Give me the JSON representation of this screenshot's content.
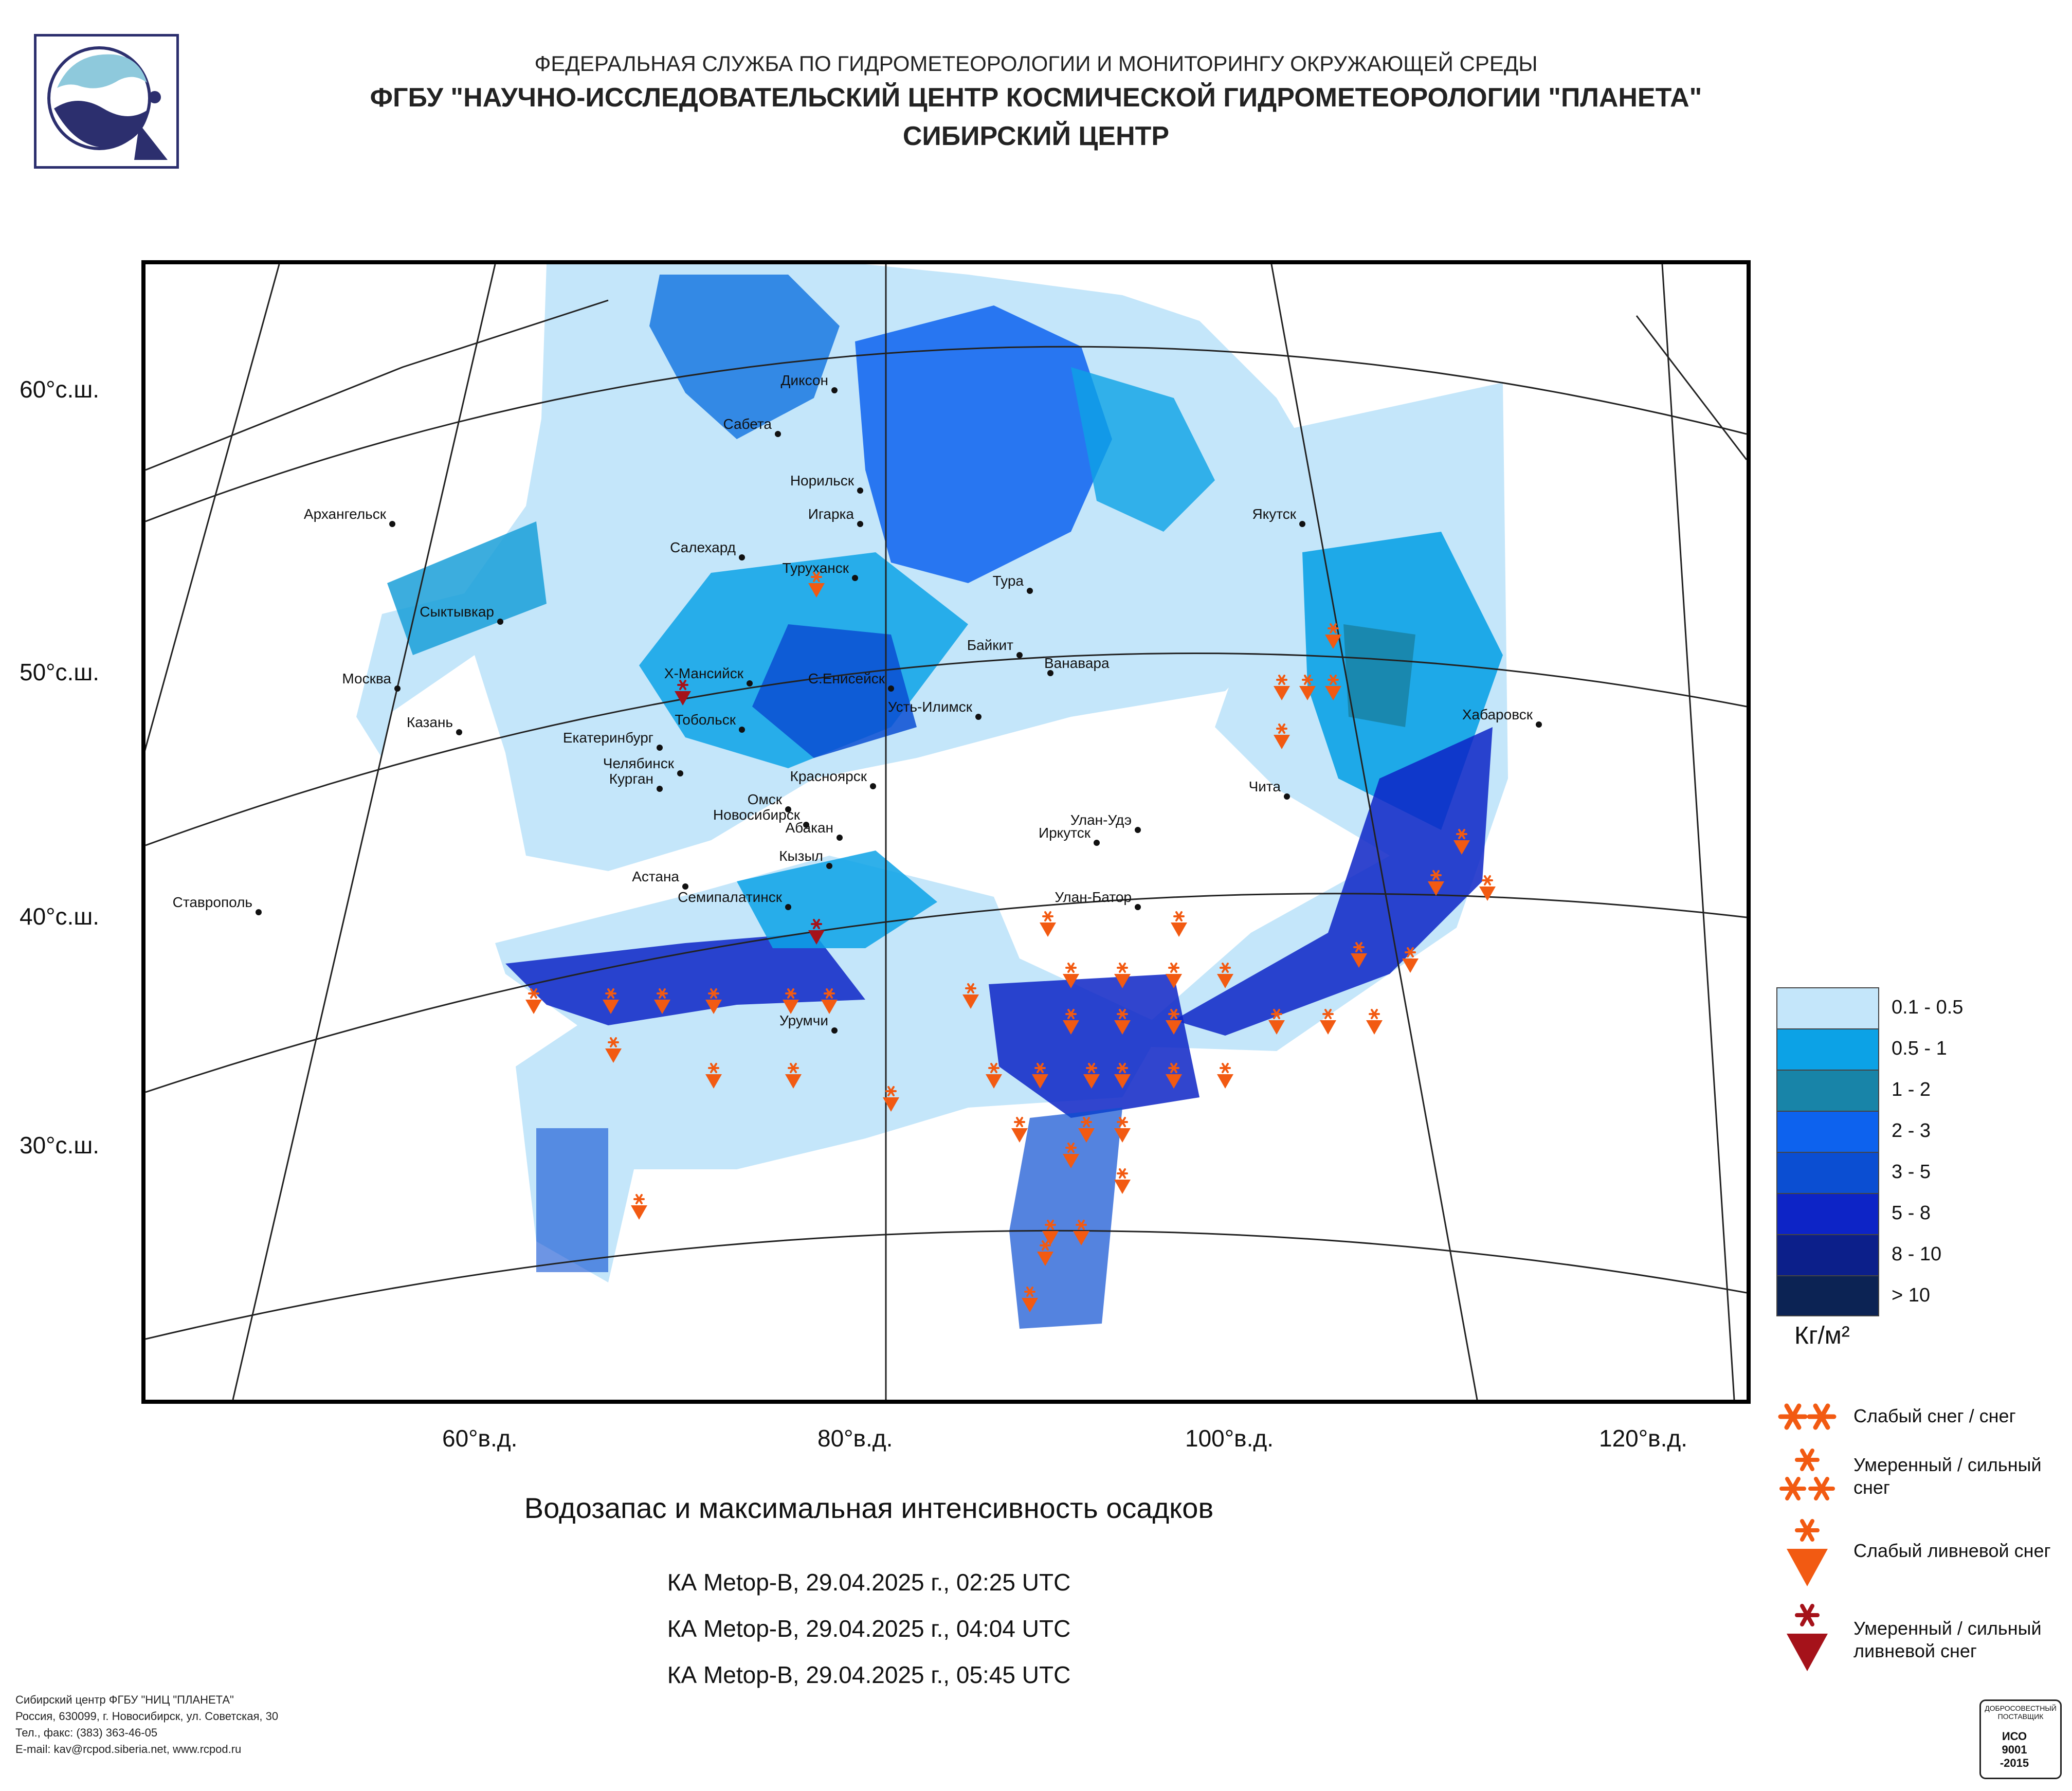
{
  "header": {
    "line1": "ФЕДЕРАЛЬНАЯ СЛУЖБА ПО ГИДРОМЕТЕОРОЛОГИИ И МОНИТОРИНГУ ОКРУЖАЮЩЕЙ СРЕДЫ",
    "line2": "ФГБУ \"НАУЧНО-ИССЛЕДОВАТЕЛЬСКИЙ ЦЕНТР КОСМИЧЕСКОЙ ГИДРОМЕТЕОРОЛОГИИ \"ПЛАНЕТА\"",
    "line3": "СИБИРСКИЙ ЦЕНТР"
  },
  "axes": {
    "lat_labels": [
      "60°с.ш.",
      "50°с.ш.",
      "40°с.ш.",
      "30°с.ш."
    ],
    "lon_labels": [
      "60°в.д.",
      "80°в.д.",
      "100°в.д.",
      "120°в.д."
    ]
  },
  "cities": [
    {
      "name": "Диксон"
    },
    {
      "name": "Сабета"
    },
    {
      "name": "Норильск"
    },
    {
      "name": "Игарка"
    },
    {
      "name": "Архангельск"
    },
    {
      "name": "Салехард"
    },
    {
      "name": "Туруханск"
    },
    {
      "name": "Тура"
    },
    {
      "name": "Якутск"
    },
    {
      "name": "Сыктывкар"
    },
    {
      "name": "Байкит"
    },
    {
      "name": "Ванавара"
    },
    {
      "name": "Москва"
    },
    {
      "name": "Х-Мансийск"
    },
    {
      "name": "С.Енисейск"
    },
    {
      "name": "Усть-Илимск"
    },
    {
      "name": "Хабаровск"
    },
    {
      "name": "Казань"
    },
    {
      "name": "Тобольск"
    },
    {
      "name": "Екатеринбург"
    },
    {
      "name": "Челябинск"
    },
    {
      "name": "Курган"
    },
    {
      "name": "Красноярск"
    },
    {
      "name": "Чита"
    },
    {
      "name": "Омск"
    },
    {
      "name": "Новосибирск"
    },
    {
      "name": "Абакан"
    },
    {
      "name": "Улан-Удэ"
    },
    {
      "name": "Иркутск"
    },
    {
      "name": "Кызыл"
    },
    {
      "name": "Астана"
    },
    {
      "name": "Ставрополь"
    },
    {
      "name": "Семипалатинск"
    },
    {
      "name": "Улан-Батор"
    },
    {
      "name": "Урумчи"
    }
  ],
  "legend": {
    "classes": [
      {
        "label": "0.1 - 0.5",
        "color": "#c4e6fa"
      },
      {
        "label": "0.5 - 1",
        "color": "#0ca2e6"
      },
      {
        "label": "1 - 2",
        "color": "#1884a8"
      },
      {
        "label": "2 - 3",
        "color": "#0d62ee"
      },
      {
        "label": "3 - 5",
        "color": "#0b4ed2"
      },
      {
        "label": "5 - 8",
        "color": "#0d24c6"
      },
      {
        "label": "8 - 10",
        "color": "#0c1f8a"
      },
      {
        "label": "> 10",
        "color": "#0c2354"
      }
    ],
    "unit": "Кг/м²",
    "symbols": [
      {
        "label": "Слабый снег / снег",
        "color": "#f25a12"
      },
      {
        "label": "Умеренный / сильный снег",
        "color": "#f25a12"
      },
      {
        "label": "Слабый ливневой снег",
        "color": "#f25a12"
      },
      {
        "label": "Умеренный / сильный ливневой снег",
        "color": "#a5121a"
      }
    ]
  },
  "caption": "Водозапас и максимальная интенсивность осадков",
  "passes": [
    "КА Metop-B, 29.04.2025 г., 02:25 UTC",
    "КА Metop-B, 29.04.2025 г., 04:04 UTC",
    "КА Metop-B, 29.04.2025 г., 05:45 UTC"
  ],
  "footer": {
    "line1": "Сибирский центр ФГБУ \"НИЦ \"ПЛАНЕТА\"",
    "line2": "Россия, 630099, г. Новосибирск, ул. Советская, 30",
    "line3": "Тел., факс: (383) 363-46-05",
    "line4": "E-mail: kav@rcpod.siberia.net, www.rcpod.ru"
  },
  "iso_badge": {
    "top": "ДОБРОСОВЕСТНЫЙ ПОСТАВЩИК",
    "mid": "ИСО 9001 -2015"
  }
}
